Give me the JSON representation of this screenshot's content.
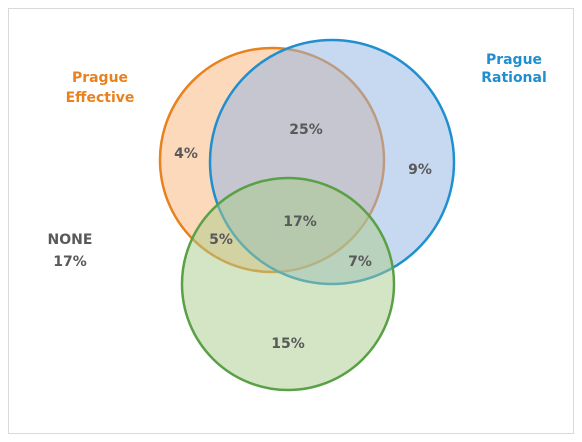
{
  "sets": [
    {
      "label": [
        "Prague",
        "Effective"
      ]
    },
    {
      "label": [
        "Prague",
        "Rational"
      ]
    }
  ],
  "regions": [
    {
      "label": "4%"
    },
    {
      "label": "25%"
    },
    {
      "label": "9%"
    },
    {
      "label": "17%"
    },
    {
      "label": "5%"
    },
    {
      "label": "7%"
    },
    {
      "label": "15%"
    }
  ],
  "none": {
    "label": "NONE",
    "value": "17%"
  }
}
